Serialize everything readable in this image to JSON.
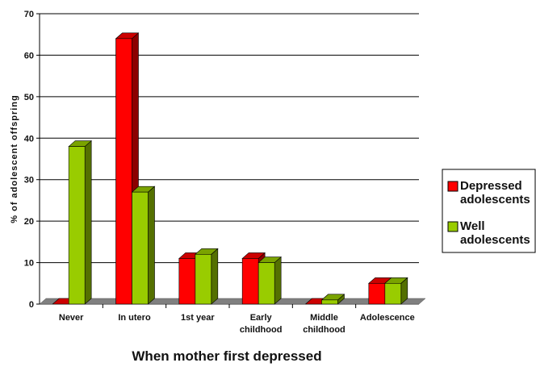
{
  "chart_data": {
    "type": "bar",
    "categories": [
      [
        "Never"
      ],
      [
        "In utero"
      ],
      [
        "1st  year"
      ],
      [
        "Early",
        "childhood"
      ],
      [
        "Middle",
        "childhood"
      ],
      [
        "Adolescence"
      ]
    ],
    "series": [
      {
        "name": [
          "Depressed",
          "adolescents"
        ],
        "color": "#ff0000",
        "values": [
          0,
          64,
          11,
          11,
          0,
          5
        ]
      },
      {
        "name": [
          "Well",
          "adolescents"
        ],
        "color": "#99cc00",
        "values": [
          38,
          27,
          12,
          10,
          1,
          5
        ]
      }
    ],
    "title": "",
    "xlabel": "When mother first depressed",
    "ylabel": "% of adolescent offspring",
    "ylim": [
      0,
      70
    ],
    "yticks": [
      0,
      10,
      20,
      30,
      40,
      50,
      60,
      70
    ],
    "grid": true,
    "legend": "right",
    "three_d": true
  }
}
